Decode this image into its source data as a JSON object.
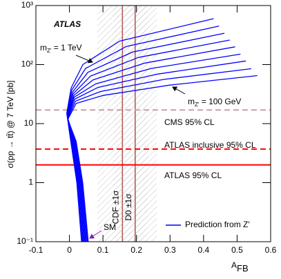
{
  "chart_data": {
    "type": "line",
    "title": "ATLAS",
    "x_label": {
      "main": "A",
      "sub": "FB"
    },
    "y_label": "σ(pp → tt̄) @ 7 TeV [pb]",
    "xlim": [
      -0.1,
      0.6
    ],
    "xticks": [
      -0.1,
      0,
      0.1,
      0.2,
      0.3,
      0.4,
      0.5,
      0.6
    ],
    "ylim": [
      0.1,
      1000
    ],
    "yticks": [
      {
        "value": 0.1,
        "label": "10⁻¹"
      },
      1,
      10,
      {
        "value": 100,
        "label": "10²"
      },
      {
        "value": 1000,
        "label": "10³"
      }
    ],
    "log_y": true,
    "legend_label": "Prediction from Z′",
    "legend": "lower right",
    "color": "#0000ff",
    "series": [
      {
        "x": [
          0.036,
          0.022,
          0.004,
          -0.008,
          0.005,
          0.04,
          0.15,
          0.43
        ],
        "values": [
          0.1,
          1,
          5,
          15,
          40,
          100,
          250,
          600
        ]
      },
      {
        "x": [
          0.0385,
          0.0242,
          0.006,
          -0.0076,
          0.007,
          0.048,
          0.169,
          0.446
        ],
        "values": [
          0.1,
          1,
          5,
          14.6,
          37,
          86,
          202,
          450
        ]
      },
      {
        "x": [
          0.041,
          0.0264,
          0.008,
          -0.0072,
          0.009,
          0.055,
          0.188,
          0.462
        ],
        "values": [
          0.1,
          1,
          5,
          14.2,
          34,
          74,
          163,
          340
        ]
      },
      {
        "x": [
          0.0435,
          0.0286,
          0.01,
          -0.0068,
          0.011,
          0.063,
          0.206,
          0.478
        ],
        "values": [
          0.1,
          1,
          5,
          13.8,
          32,
          64,
          132,
          260
        ]
      },
      {
        "x": [
          0.046,
          0.0308,
          0.012,
          -0.0064,
          0.013,
          0.07,
          0.225,
          0.494
        ],
        "values": [
          0.1,
          1,
          5,
          13.4,
          30,
          55,
          106,
          200
        ]
      },
      {
        "x": [
          0.0485,
          0.033,
          0.014,
          -0.006,
          0.014,
          0.078,
          0.244,
          0.51
        ],
        "values": [
          0.1,
          1,
          5,
          13,
          28,
          47,
          86,
          150
        ]
      },
      {
        "x": [
          0.051,
          0.0352,
          0.016,
          -0.0056,
          0.016,
          0.085,
          0.263,
          0.526
        ],
        "values": [
          0.1,
          1,
          5,
          12.6,
          26,
          41,
          69,
          115
        ]
      },
      {
        "x": [
          0.0535,
          0.0374,
          0.018,
          -0.0052,
          0.018,
          0.093,
          0.281,
          0.542
        ],
        "values": [
          0.1,
          1,
          5,
          12.2,
          24,
          35,
          56,
          85
        ]
      },
      {
        "x": [
          0.056,
          0.0396,
          0.02,
          -0.0048,
          0.02,
          0.1,
          0.3,
          0.56
        ],
        "values": [
          0.1,
          1,
          5,
          11.8,
          22,
          30,
          45,
          65
        ]
      }
    ],
    "hlines": [
      {
        "value": 17,
        "label": "CMS 95% CL",
        "color": "#c8a0a0",
        "style": "dashed"
      },
      {
        "value": 3.7,
        "label": "ATLAS inclusive 95% CL",
        "color": "#ff0000",
        "style": "dashed"
      },
      {
        "value": 2,
        "label": "ATLAS 95% CL",
        "color": "#ff0000",
        "style": "solid"
      }
    ],
    "bands": [
      {
        "label": "CDF ±1σ",
        "center": 0.158,
        "error": 0.075,
        "color": "#b05050"
      },
      {
        "label": "D0 ±1σ",
        "center": 0.196,
        "error": 0.065,
        "color": "#b05050"
      }
    ],
    "annotations": [
      {
        "main": "m",
        "sub": "Z′",
        "rest": " = 1 TeV"
      },
      {
        "main": "m",
        "sub": "Z′",
        "rest": " = 100 GeV"
      }
    ],
    "sm_label": "SM",
    "sm_color": "#8020a0"
  }
}
